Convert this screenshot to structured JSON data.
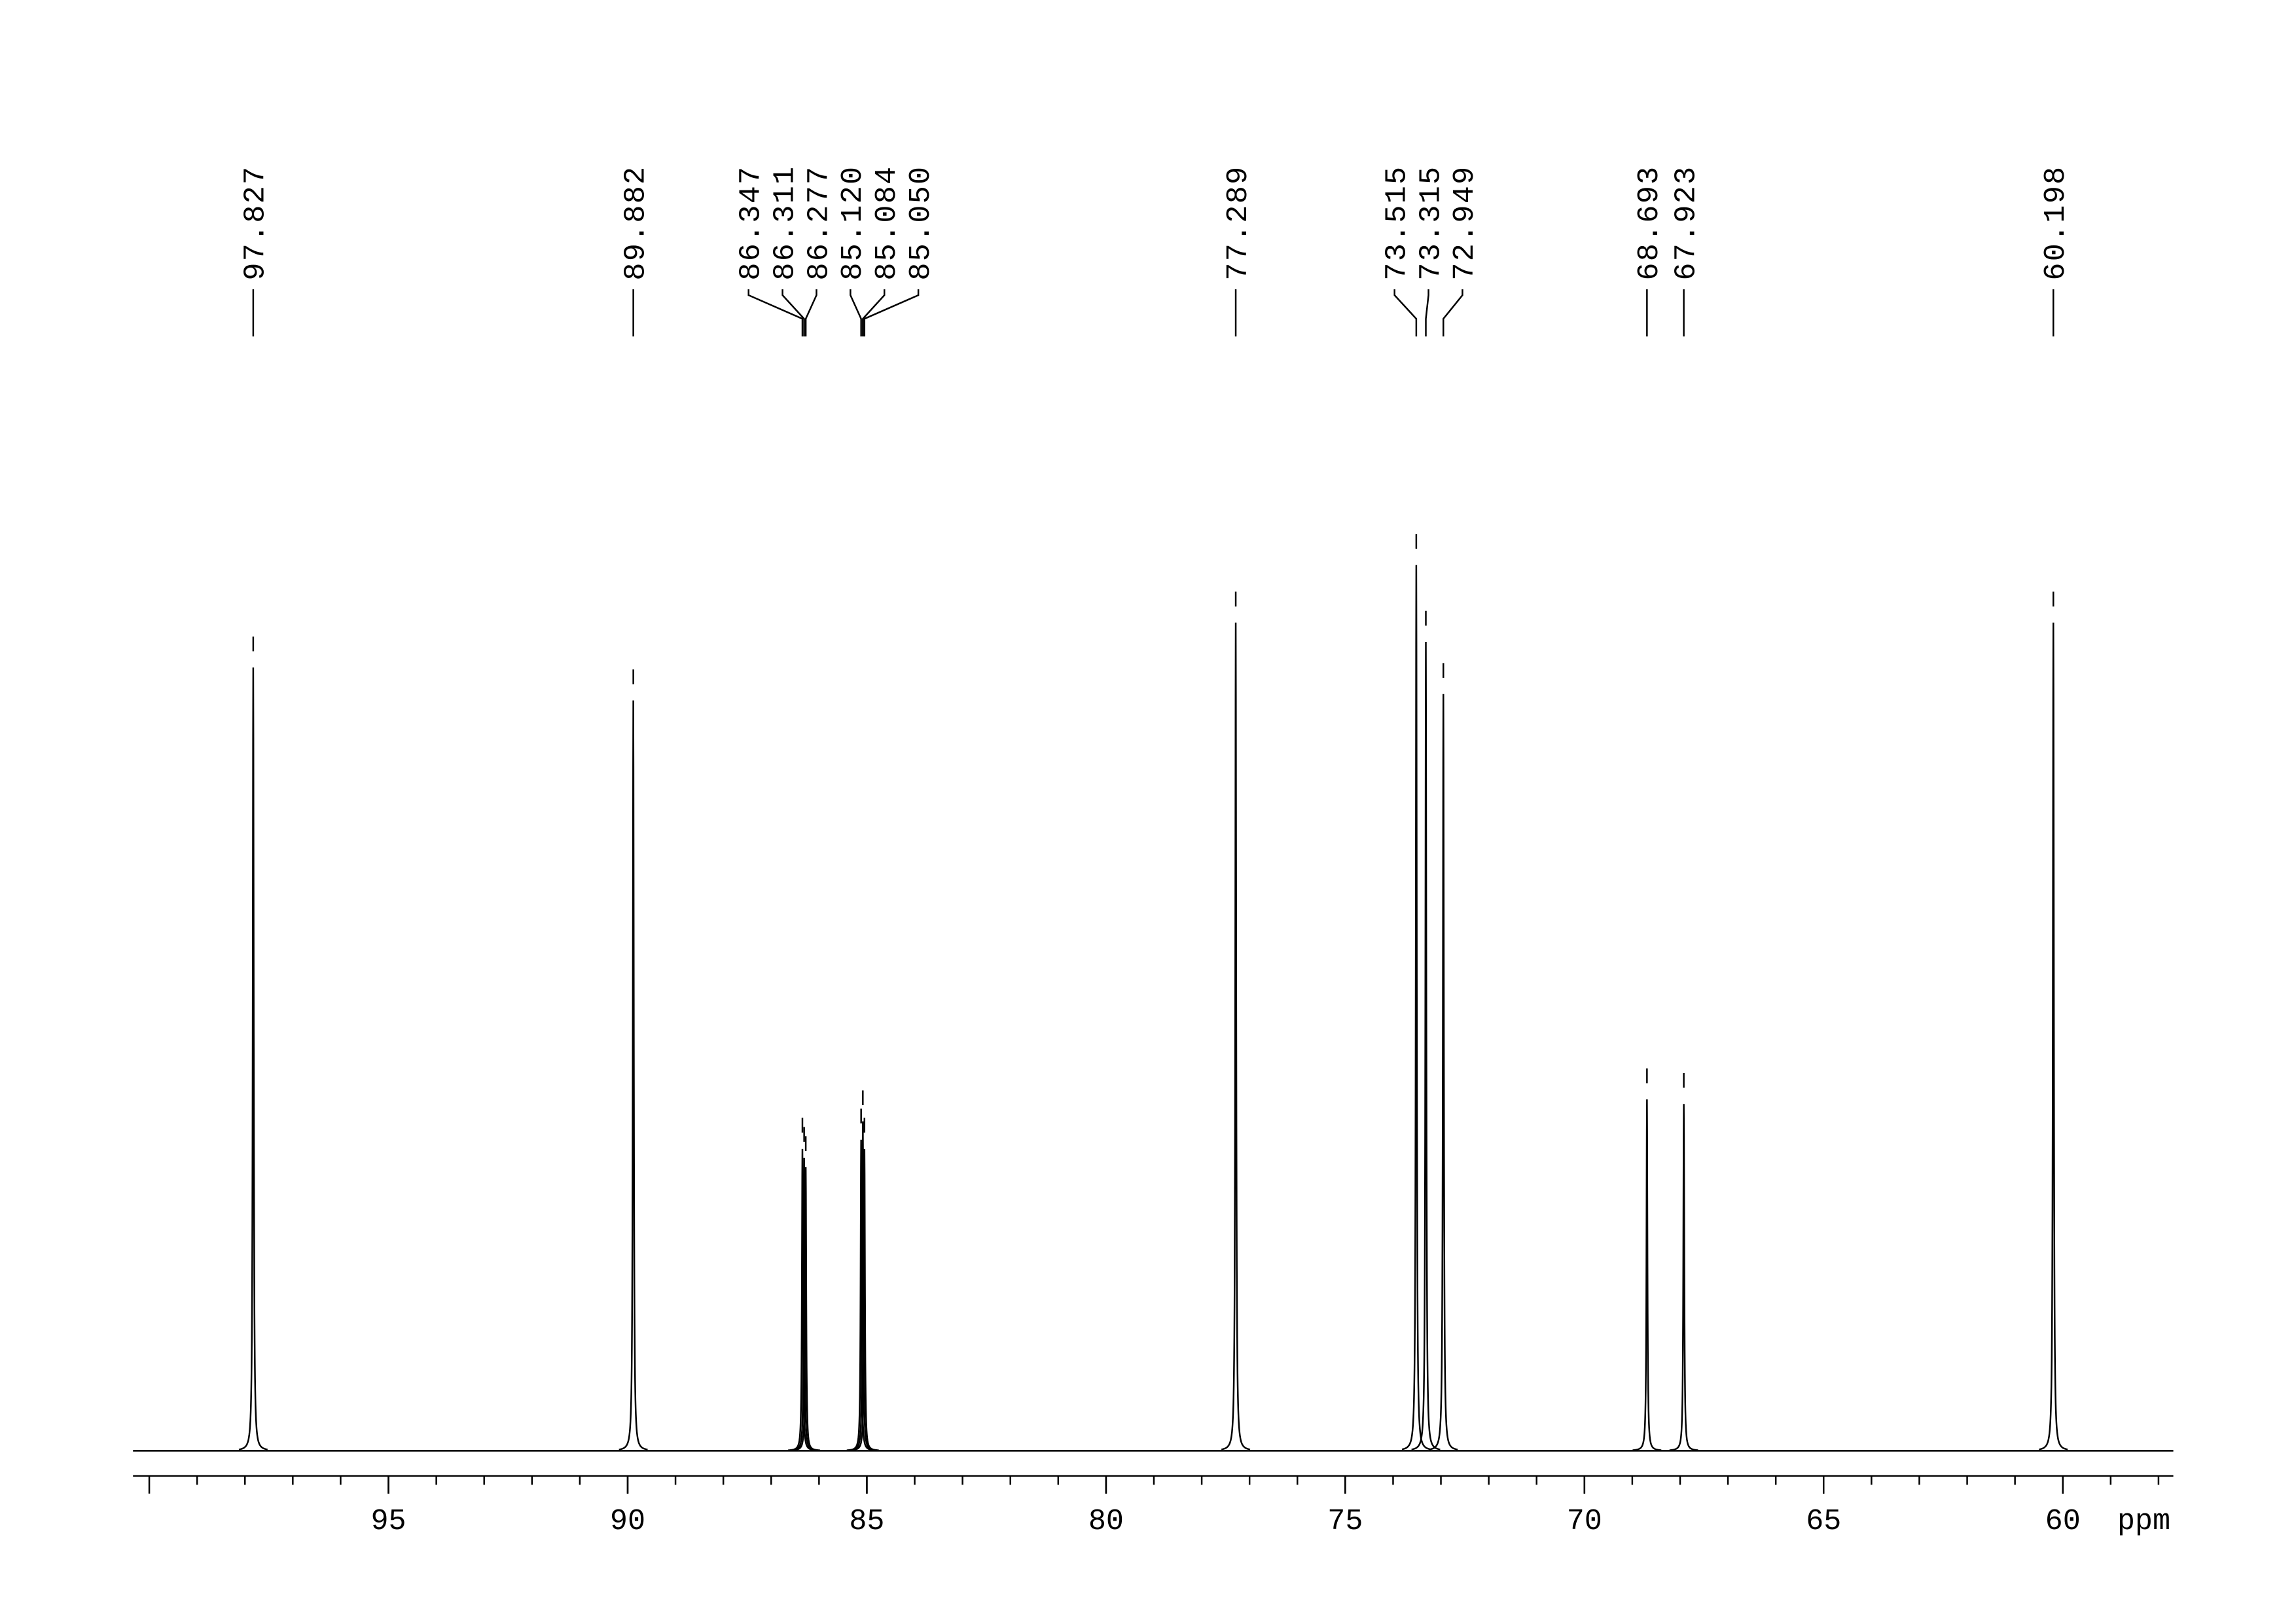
{
  "chart_data": {
    "type": "nmr",
    "x": [
      97.827,
      89.882,
      86.347,
      86.311,
      86.277,
      85.12,
      85.084,
      85.05,
      77.289,
      73.515,
      73.315,
      72.949,
      68.693,
      67.923,
      60.198
    ],
    "values": [
      85.6,
      82,
      33,
      32,
      31,
      34,
      36,
      33,
      90.5,
      96.8,
      88.4,
      82.7,
      38.4,
      37.9,
      90.5
    ],
    "value_labels": [
      "97.827",
      "89.882",
      "86.347",
      "86.311",
      "86.277",
      "85.120",
      "85.084",
      "85.050",
      "77.289",
      "73.515",
      "73.315",
      "72.949",
      "68.693",
      "67.923",
      "60.198"
    ],
    "xlim": [
      100.34,
      57.69
    ],
    "xticks": [
      95,
      90,
      85,
      80,
      75,
      70,
      65,
      60
    ],
    "xminor_step": 1,
    "ylim": [
      0,
      100
    ],
    "xlabel": "ppm",
    "color": "#000000"
  }
}
